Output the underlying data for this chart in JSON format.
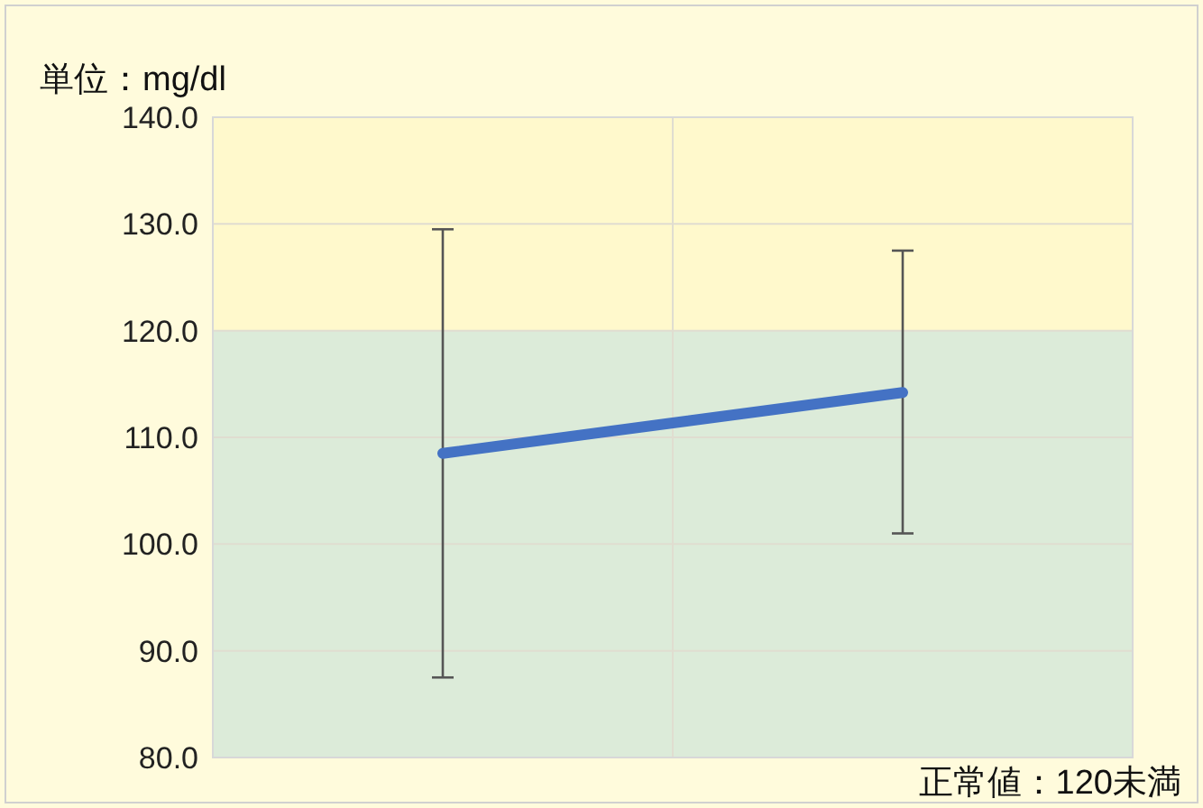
{
  "chart_data": {
    "type": "line",
    "ylabel": "単位：mg/dl",
    "categories": [
      null,
      null
    ],
    "series": [
      {
        "color": "#4472c4",
        "values": [
          108.5,
          114.2
        ],
        "errors": [
          [
            87.5,
            129.5
          ],
          [
            101.0,
            127.5
          ]
        ]
      }
    ],
    "ylim": [
      80,
      140
    ],
    "yticks": [
      {
        "value": 80,
        "label": "80.0"
      },
      {
        "value": 90,
        "label": "90.0"
      },
      {
        "value": 100,
        "label": "100.0"
      },
      {
        "value": 110,
        "label": "110.0"
      },
      {
        "value": 120,
        "label": "120.0"
      },
      {
        "value": 130,
        "label": "130.0"
      },
      {
        "value": 140,
        "label": "140.0"
      }
    ],
    "bands": [
      {
        "axis": "y",
        "from": 80,
        "to": 120,
        "color": "#dcebd9"
      },
      {
        "axis": "y",
        "from": 120,
        "to": 140,
        "color": "#fff9cc"
      }
    ],
    "annotations": [
      "正常値：120未満"
    ],
    "grid": true,
    "marker": "none",
    "line_style": "solid"
  }
}
